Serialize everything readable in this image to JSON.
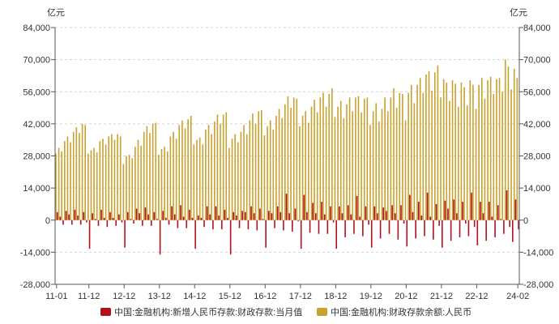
{
  "chart_data": {
    "type": "bar",
    "y_unit_left": "亿元",
    "y_unit_right": "亿元",
    "ylim": [
      -28000,
      84000
    ],
    "ytick_labels": [
      "84,000",
      "70,000",
      "56,000",
      "42,000",
      "28,000",
      "14,000",
      "0",
      "-14,000",
      "-28,000"
    ],
    "x_ticks": [
      "11-01",
      "11-12",
      "12-12",
      "13-12",
      "14-12",
      "15-12",
      "16-12",
      "17-12",
      "18-12",
      "19-12",
      "20-12",
      "21-12",
      "22-12",
      "24-02"
    ],
    "x": [
      "11-01",
      "11-02",
      "11-03",
      "11-04",
      "11-05",
      "11-06",
      "11-07",
      "11-08",
      "11-09",
      "11-10",
      "11-11",
      "11-12",
      "12-01",
      "12-02",
      "12-03",
      "12-04",
      "12-05",
      "12-06",
      "12-07",
      "12-08",
      "12-09",
      "12-10",
      "12-11",
      "12-12",
      "13-01",
      "13-02",
      "13-03",
      "13-04",
      "13-05",
      "13-06",
      "13-07",
      "13-08",
      "13-09",
      "13-10",
      "13-11",
      "13-12",
      "14-01",
      "14-02",
      "14-03",
      "14-04",
      "14-05",
      "14-06",
      "14-07",
      "14-08",
      "14-09",
      "14-10",
      "14-11",
      "14-12",
      "15-01",
      "15-02",
      "15-03",
      "15-04",
      "15-05",
      "15-06",
      "15-07",
      "15-08",
      "15-09",
      "15-10",
      "15-11",
      "15-12",
      "16-01",
      "16-02",
      "16-03",
      "16-04",
      "16-05",
      "16-06",
      "16-07",
      "16-08",
      "16-09",
      "16-10",
      "16-11",
      "16-12",
      "17-01",
      "17-02",
      "17-03",
      "17-04",
      "17-05",
      "17-06",
      "17-07",
      "17-08",
      "17-09",
      "17-10",
      "17-11",
      "17-12",
      "18-01",
      "18-02",
      "18-03",
      "18-04",
      "18-05",
      "18-06",
      "18-07",
      "18-08",
      "18-09",
      "18-10",
      "18-11",
      "18-12",
      "19-01",
      "19-02",
      "19-03",
      "19-04",
      "19-05",
      "19-06",
      "19-07",
      "19-08",
      "19-09",
      "19-10",
      "19-11",
      "19-12",
      "20-01",
      "20-02",
      "20-03",
      "20-04",
      "20-05",
      "20-06",
      "20-07",
      "20-08",
      "20-09",
      "20-10",
      "20-11",
      "20-12",
      "21-01",
      "21-02",
      "21-03",
      "21-04",
      "21-05",
      "21-06",
      "21-07",
      "21-08",
      "21-09",
      "21-10",
      "21-11",
      "21-12",
      "22-01",
      "22-02",
      "22-03",
      "22-04",
      "22-05",
      "22-06",
      "22-07",
      "22-08",
      "22-09",
      "22-10",
      "22-11",
      "22-12",
      "23-01",
      "23-02",
      "23-03",
      "23-04",
      "23-05",
      "23-06",
      "23-07",
      "23-08",
      "23-09",
      "23-10",
      "23-11",
      "23-12",
      "24-01",
      "24-02"
    ],
    "grid": true,
    "legend": "bottom",
    "series": [
      {
        "name": "中国:金融机构:新增人民币存款:财政存款:当月值",
        "color": "#b0121b",
        "values": [
          3500,
          1500,
          -2000,
          4000,
          2500,
          -2000,
          4500,
          2000,
          -2000,
          3500,
          -1000,
          -12500,
          3000,
          500,
          -2500,
          4500,
          1000,
          -3000,
          3500,
          1000,
          -2500,
          2500,
          -1000,
          -12000,
          3500,
          500,
          -1500,
          5000,
          3000,
          -2500,
          5500,
          2500,
          -2500,
          3500,
          500,
          -15000,
          4000,
          1000,
          -2000,
          6000,
          2500,
          -3500,
          6500,
          1500,
          -3500,
          4500,
          1000,
          -12500,
          2000,
          1000,
          -3000,
          6000,
          2500,
          -4000,
          6000,
          2000,
          -4000,
          4500,
          1000,
          -15000,
          3500,
          2000,
          -3500,
          4000,
          3500,
          -4000,
          6000,
          3000,
          -4500,
          5000,
          500,
          -12000,
          4000,
          3000,
          -3500,
          6000,
          3500,
          -4500,
          11500,
          3000,
          -5000,
          5000,
          -500,
          -12500,
          11000,
          3500,
          -5500,
          7500,
          3000,
          -6000,
          8000,
          2500,
          -6000,
          6000,
          -1000,
          -12500,
          6000,
          3000,
          -7500,
          6500,
          2500,
          -6000,
          10500,
          1500,
          -7000,
          6000,
          -2000,
          -12000,
          6000,
          3000,
          -8000,
          5500,
          4000,
          -6000,
          6500,
          3000,
          -8500,
          6500,
          -1500,
          -11500,
          11000,
          3500,
          -8000,
          8000,
          2000,
          -7000,
          12000,
          1500,
          -8500,
          7000,
          -2500,
          -12000,
          8500,
          5000,
          -9000,
          9000,
          3000,
          -7500,
          8000,
          -1500,
          -7000,
          12000,
          -3000,
          -11000,
          8000,
          3000,
          -9000,
          8000,
          1500,
          -7500,
          6500,
          500,
          -6000,
          13000,
          -3000,
          -9500,
          9000,
          -4000
        ]
      },
      {
        "name": "中国:金融机构:财政存款余额:人民币",
        "color": "#c9a12e",
        "values": [
          29000,
          31500,
          30000,
          34500,
          36500,
          34000,
          38500,
          40500,
          38000,
          42000,
          41500,
          29000,
          30500,
          31500,
          29500,
          34500,
          35500,
          33000,
          36500,
          37500,
          35000,
          37500,
          36500,
          24500,
          28000,
          28500,
          27000,
          32000,
          35000,
          32500,
          38500,
          41000,
          38000,
          42000,
          42500,
          28500,
          31000,
          32000,
          30000,
          36500,
          38500,
          35500,
          41500,
          43500,
          40000,
          44000,
          45500,
          33000,
          35000,
          36000,
          33000,
          39500,
          41500,
          37500,
          43000,
          46000,
          42000,
          46000,
          47000,
          31500,
          35500,
          37500,
          34000,
          38500,
          41500,
          37500,
          43500,
          46500,
          42000,
          47500,
          48000,
          37000,
          41000,
          43500,
          39500,
          45500,
          48500,
          44500,
          50500,
          54000,
          49000,
          53500,
          53000,
          41000,
          45500,
          47500,
          42500,
          49500,
          52500,
          47000,
          53500,
          55500,
          49500,
          55000,
          57500,
          45000,
          49500,
          52000,
          44500,
          50500,
          53500,
          47500,
          53500,
          54000,
          47000,
          53000,
          53500,
          41500,
          47500,
          51000,
          43000,
          48500,
          53500,
          47500,
          53500,
          57500,
          49000,
          55500,
          55000,
          43500,
          55500,
          59000,
          51000,
          59000,
          62000,
          55500,
          63500,
          65000,
          56500,
          64500,
          67500,
          53500,
          61500,
          60000,
          52000,
          61000,
          59500,
          49500,
          60000,
          58000,
          50000,
          61000,
          59000,
          48500,
          59000,
          62000,
          53000,
          61000,
          62500,
          55000,
          61500,
          62000,
          56000,
          70000,
          67000,
          57000,
          66000,
          62000
        ]
      }
    ]
  }
}
